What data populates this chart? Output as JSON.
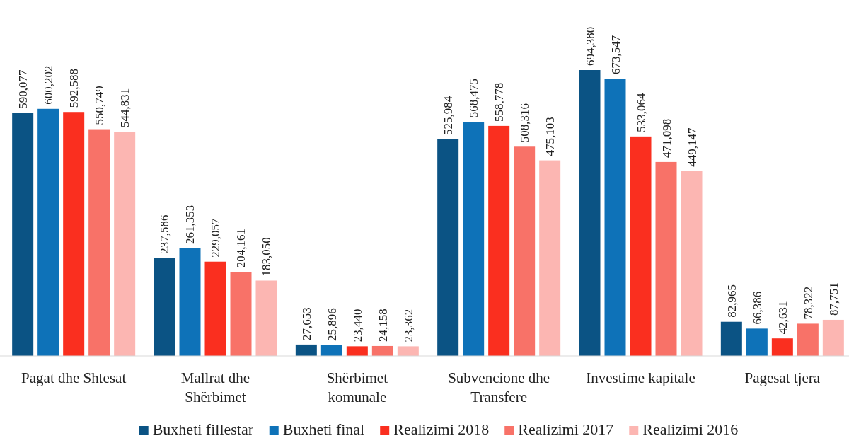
{
  "chart_data": {
    "type": "bar",
    "categories": [
      "Pagat dhe Shtesat",
      "Mallrat dhe Shërbimet",
      "Shërbimet komunale",
      "Subvencione dhe Transfere",
      "Investime kapitale",
      "Pagesat tjera"
    ],
    "series": [
      {
        "name": "Buxheti fillestar",
        "color": "#0b5384",
        "values": [
          590077,
          237586,
          27653,
          525984,
          694380,
          82965
        ],
        "value_labels": [
          "590,077",
          "237,586",
          "27,653",
          "525,984",
          "694,380",
          "82,965"
        ]
      },
      {
        "name": "Buxheti final",
        "color": "#0e72b8",
        "values": [
          600202,
          261353,
          25896,
          568475,
          673547,
          66386
        ],
        "value_labels": [
          "600,202",
          "261,353",
          "25,896",
          "568,475",
          "673,547",
          "66,386"
        ]
      },
      {
        "name": "Realizimi 2018",
        "color": "#fa2f1f",
        "values": [
          592588,
          229057,
          23440,
          558778,
          533064,
          42631
        ],
        "value_labels": [
          "592,588",
          "229,057",
          "23,440",
          "558,778",
          "533,064",
          "42,631"
        ]
      },
      {
        "name": "Realizimi 2017",
        "color": "#f87268",
        "values": [
          550749,
          204161,
          24158,
          508316,
          471098,
          78322
        ],
        "value_labels": [
          "550,749",
          "204,161",
          "24,158",
          "508,316",
          "471,098",
          "78,322"
        ]
      },
      {
        "name": "Realizimi 2016",
        "color": "#fcb6b2",
        "values": [
          544831,
          183050,
          23362,
          475103,
          449147,
          87751
        ],
        "value_labels": [
          "544,831",
          "183,050",
          "23,362",
          "475,103",
          "449,147",
          "87,751"
        ]
      }
    ],
    "legend": "bottom",
    "grid": false
  }
}
